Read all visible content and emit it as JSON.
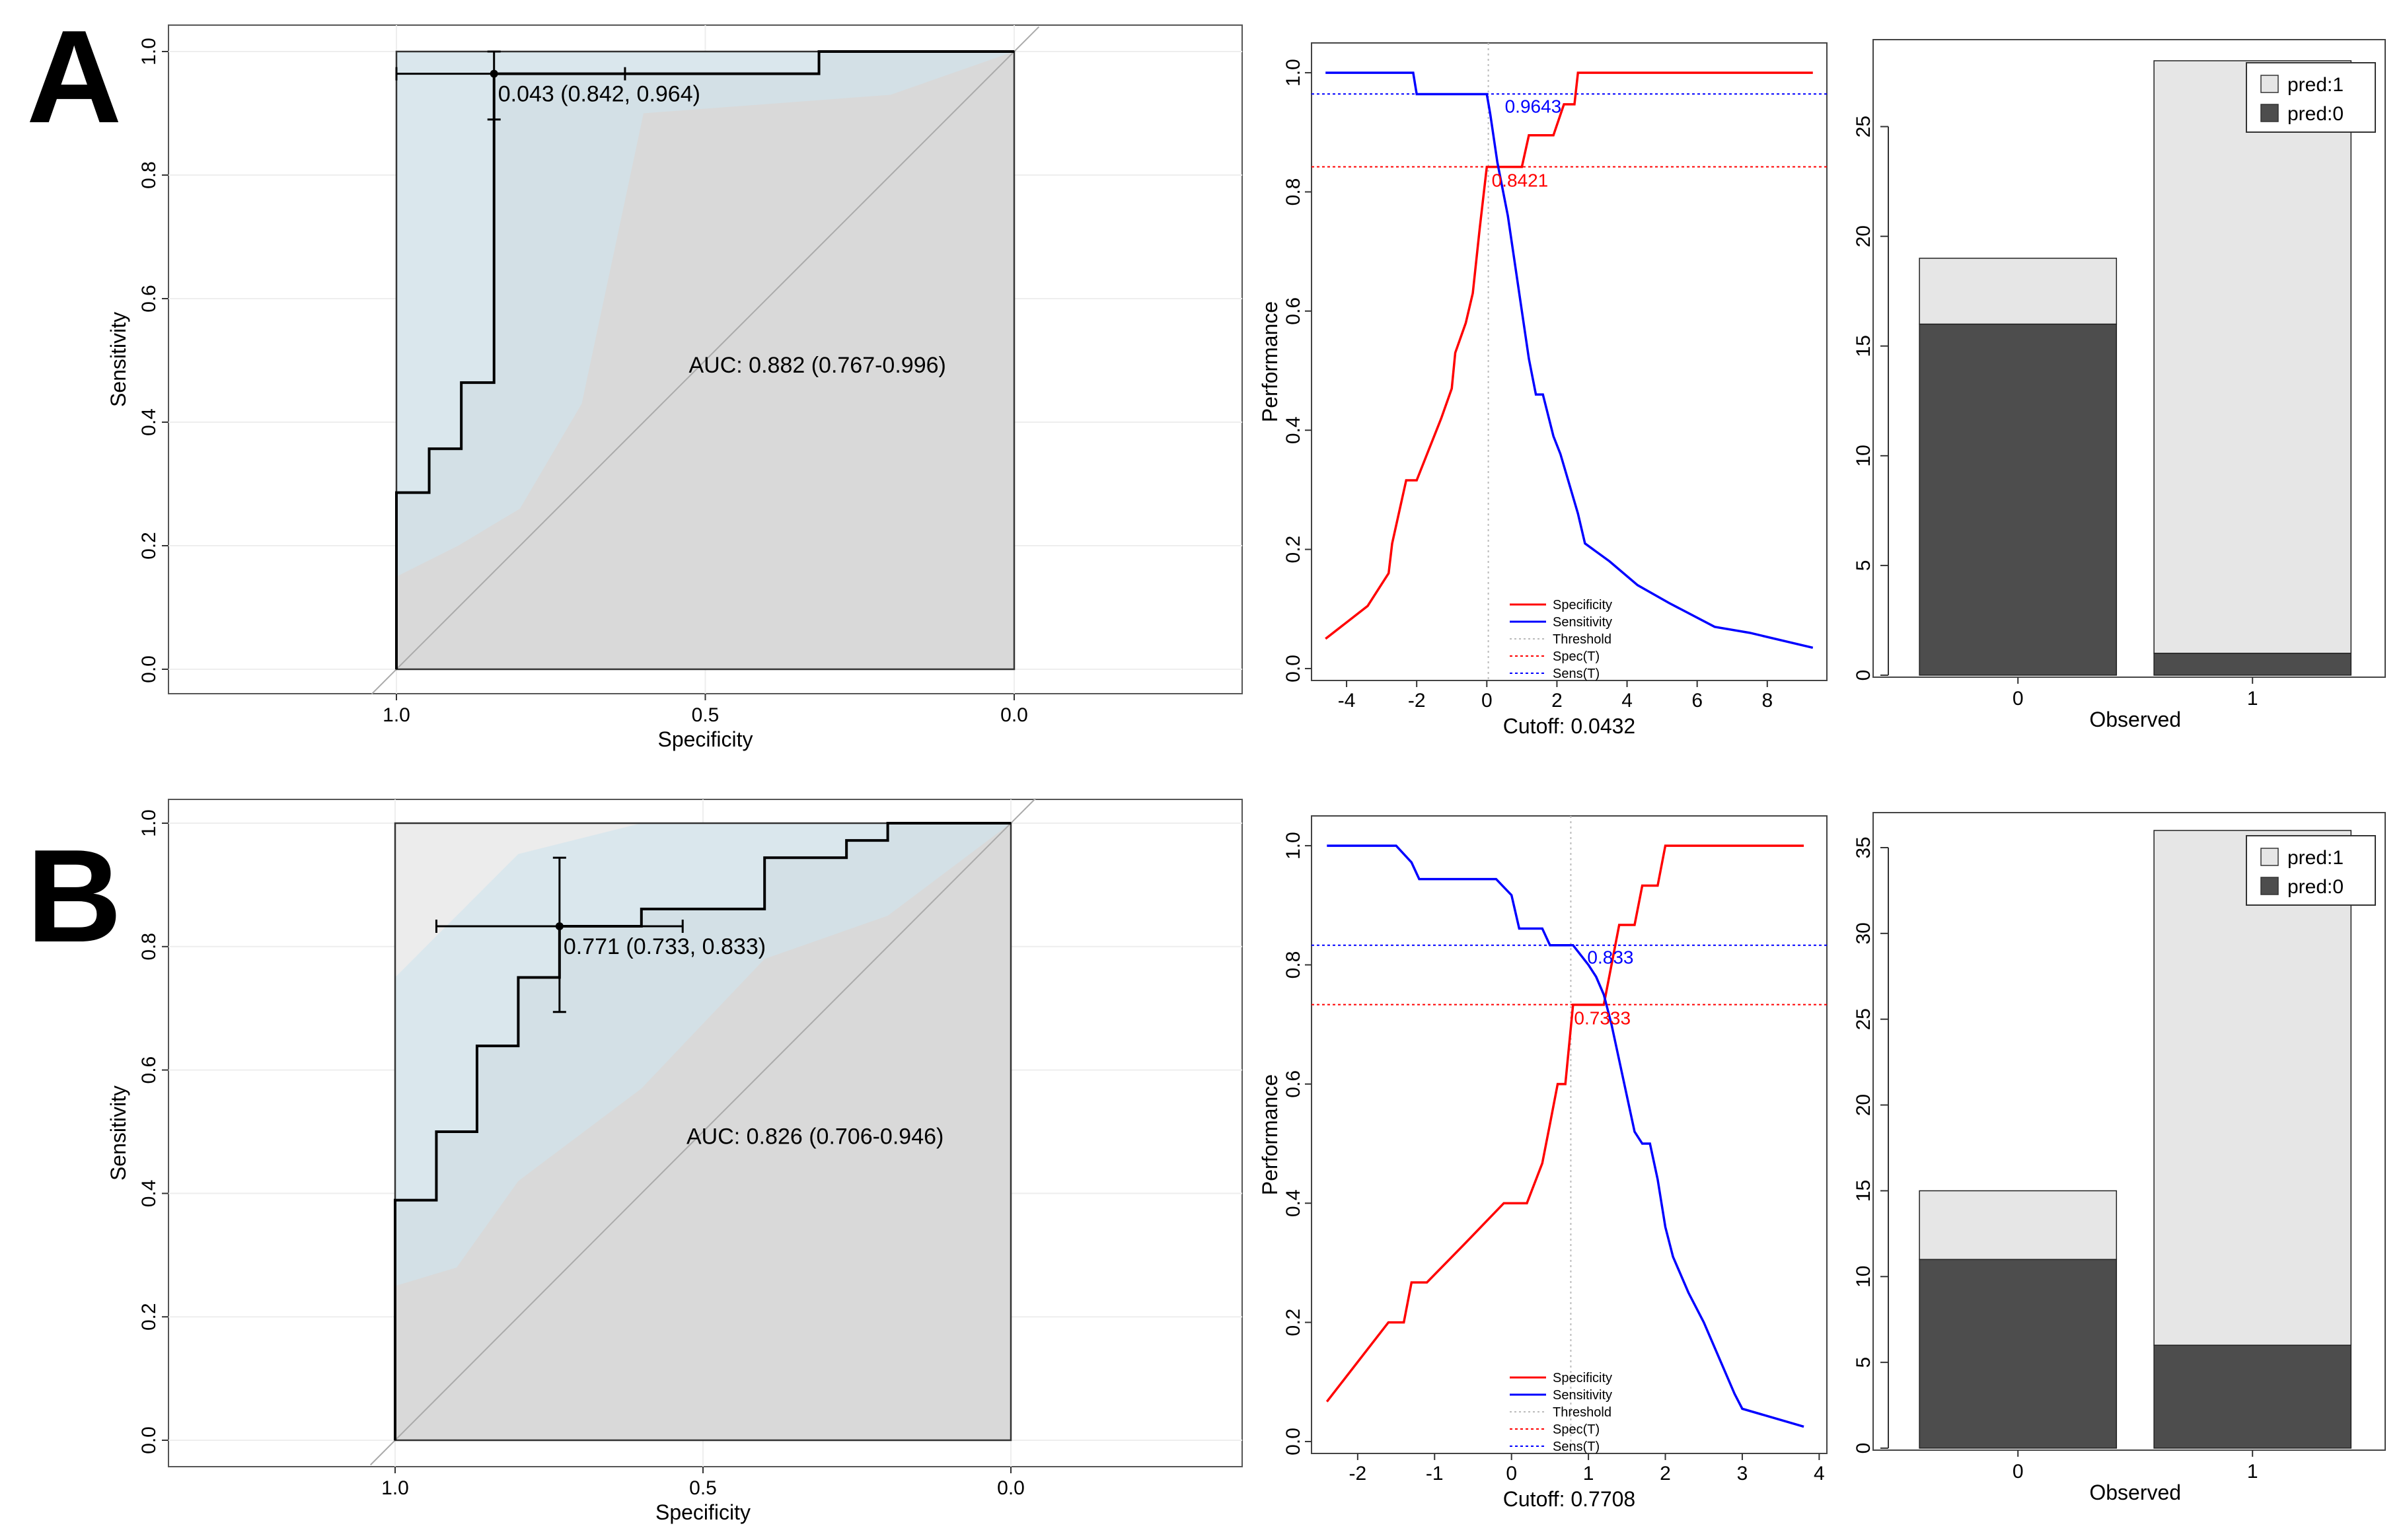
{
  "panels": [
    {
      "label": "A",
      "roc": {
        "type": "line",
        "xlabel": "Specificity",
        "ylabel": "Sensitivity",
        "xlim": [
          1.0,
          0.0
        ],
        "ylim": [
          0.0,
          1.0
        ],
        "xticks": [
          "1.0",
          "0.5",
          "0.0"
        ],
        "xtick_values": [
          1.0,
          0.5,
          0.0
        ],
        "yticks": [
          "0.0",
          "0.2",
          "0.4",
          "0.6",
          "0.8",
          "1.0"
        ],
        "ytick_values": [
          0.0,
          0.2,
          0.4,
          0.6,
          0.8,
          1.0
        ],
        "auc_text": "AUC: 0.882 (0.767-0.996)",
        "threshold_text": "0.043 (0.842, 0.964)",
        "threshold_point": {
          "spec": 0.842,
          "sens": 0.964
        },
        "ci_spec": [
          0.63,
          1.0
        ],
        "ci_sens": [
          0.89,
          1.0
        ],
        "curve": [
          [
            1.0,
            0.0
          ],
          [
            1.0,
            0.286
          ],
          [
            0.947,
            0.286
          ],
          [
            0.947,
            0.357
          ],
          [
            0.895,
            0.357
          ],
          [
            0.895,
            0.464
          ],
          [
            0.842,
            0.464
          ],
          [
            0.842,
            0.964
          ],
          [
            0.316,
            0.964
          ],
          [
            0.316,
            1.0
          ],
          [
            0.0,
            1.0
          ]
        ],
        "ci_band_upper": [
          [
            1.0,
            0.96
          ],
          [
            1.0,
            1.0
          ],
          [
            0.0,
            1.0
          ]
        ],
        "ci_band_lower": [
          [
            1.0,
            0.15
          ],
          [
            0.9,
            0.2
          ],
          [
            0.8,
            0.26
          ],
          [
            0.7,
            0.43
          ],
          [
            0.6,
            0.9
          ],
          [
            0.2,
            0.93
          ],
          [
            0.0,
            1.0
          ]
        ]
      },
      "perf": {
        "type": "line",
        "xlabel": "Cutoff: 0.0432",
        "ylabel": "Performance",
        "xlim": [
          -5,
          9.7
        ],
        "ylim": [
          -0.02,
          1.05
        ],
        "xticks": [
          "-4",
          "-2",
          "0",
          "2",
          "4",
          "6",
          "8"
        ],
        "xtick_values": [
          -4,
          -2,
          0,
          2,
          4,
          6,
          8
        ],
        "yticks": [
          "0.0",
          "0.2",
          "0.4",
          "0.6",
          "0.8",
          "1.0"
        ],
        "ytick_values": [
          0.0,
          0.2,
          0.4,
          0.6,
          0.8,
          1.0
        ],
        "cutoff": 0.0432,
        "spec_t": 0.8421,
        "sens_t": 0.9643,
        "spec_label": "0.8421",
        "sens_label": "0.9643",
        "colors": {
          "specificity": "#ff0000",
          "sensitivity": "#0000ff",
          "threshold": "#bbbbbb"
        },
        "legend": [
          "Specificity",
          "Sensitivity",
          "Threshold",
          "Spec(T)",
          "Sens(T)"
        ],
        "series": [
          {
            "name": "Specificity",
            "points": [
              [
                -4.6,
                0.05
              ],
              [
                -3.4,
                0.105
              ],
              [
                -2.8,
                0.16
              ],
              [
                -2.7,
                0.21
              ],
              [
                -2.3,
                0.316
              ],
              [
                -2.0,
                0.316
              ],
              [
                -1.3,
                0.42
              ],
              [
                -1.0,
                0.47
              ],
              [
                -0.9,
                0.53
              ],
              [
                -0.6,
                0.58
              ],
              [
                -0.4,
                0.63
              ],
              [
                -0.2,
                0.74
              ],
              [
                0.0,
                0.842
              ],
              [
                0.5,
                0.842
              ],
              [
                1.0,
                0.842
              ],
              [
                1.2,
                0.895
              ],
              [
                1.9,
                0.895
              ],
              [
                2.2,
                0.947
              ],
              [
                2.5,
                0.947
              ],
              [
                2.6,
                1.0
              ],
              [
                9.3,
                1.0
              ]
            ]
          },
          {
            "name": "Sensitivity",
            "points": [
              [
                -4.6,
                1.0
              ],
              [
                -2.1,
                1.0
              ],
              [
                -2.0,
                0.964
              ],
              [
                -0.5,
                0.964
              ],
              [
                0.0,
                0.964
              ],
              [
                0.1,
                0.93
              ],
              [
                0.3,
                0.85
              ],
              [
                0.6,
                0.76
              ],
              [
                0.8,
                0.68
              ],
              [
                1.0,
                0.6
              ],
              [
                1.2,
                0.52
              ],
              [
                1.4,
                0.46
              ],
              [
                1.6,
                0.46
              ],
              [
                1.9,
                0.39
              ],
              [
                2.1,
                0.36
              ],
              [
                2.3,
                0.32
              ],
              [
                2.4,
                0.3
              ],
              [
                2.6,
                0.26
              ],
              [
                2.8,
                0.21
              ],
              [
                3.5,
                0.18
              ],
              [
                4.3,
                0.14
              ],
              [
                5.2,
                0.11
              ],
              [
                6.5,
                0.07
              ],
              [
                7.5,
                0.06
              ],
              [
                9.3,
                0.035
              ]
            ]
          }
        ]
      },
      "bar": {
        "type": "bar",
        "xlabel": "Observed",
        "categories": [
          "0",
          "1"
        ],
        "ylim": [
          0,
          25.5
        ],
        "yticks": [
          "0",
          "5",
          "10",
          "15",
          "20",
          "25"
        ],
        "ytick_values": [
          0,
          5,
          10,
          15,
          20,
          25
        ],
        "series": [
          {
            "name": "pred:0",
            "values": [
              16,
              1
            ],
            "color": "#4d4d4d"
          },
          {
            "name": "pred:1",
            "values": [
              3,
              27
            ],
            "color": "#e6e6e6"
          }
        ],
        "legend": [
          "pred:1",
          "pred:0"
        ]
      }
    },
    {
      "label": "B",
      "roc": {
        "type": "line",
        "xlabel": "Specificity",
        "ylabel": "Sensitivity",
        "xlim": [
          1.0,
          0.0
        ],
        "ylim": [
          0.0,
          1.0
        ],
        "xticks": [
          "1.0",
          "0.5",
          "0.0"
        ],
        "xtick_values": [
          1.0,
          0.5,
          0.0
        ],
        "yticks": [
          "0.0",
          "0.2",
          "0.4",
          "0.6",
          "0.8",
          "1.0"
        ],
        "ytick_values": [
          0.0,
          0.2,
          0.4,
          0.6,
          0.8,
          1.0
        ],
        "auc_text": "AUC: 0.826 (0.706-0.946)",
        "threshold_text": "0.771 (0.733, 0.833)",
        "threshold_point": {
          "spec": 0.733,
          "sens": 0.833
        },
        "ci_spec": [
          0.533,
          0.933
        ],
        "ci_sens": [
          0.694,
          0.944
        ],
        "curve": [
          [
            1.0,
            0.0
          ],
          [
            1.0,
            0.389
          ],
          [
            0.933,
            0.389
          ],
          [
            0.933,
            0.5
          ],
          [
            0.867,
            0.5
          ],
          [
            0.867,
            0.639
          ],
          [
            0.8,
            0.639
          ],
          [
            0.8,
            0.75
          ],
          [
            0.733,
            0.75
          ],
          [
            0.733,
            0.833
          ],
          [
            0.6,
            0.833
          ],
          [
            0.6,
            0.861
          ],
          [
            0.4,
            0.861
          ],
          [
            0.4,
            0.944
          ],
          [
            0.267,
            0.944
          ],
          [
            0.267,
            0.972
          ],
          [
            0.2,
            0.972
          ],
          [
            0.2,
            1.0
          ],
          [
            0.0,
            1.0
          ]
        ],
        "ci_band_upper": [
          [
            1.0,
            0.75
          ],
          [
            0.8,
            0.95
          ],
          [
            0.6,
            1.0
          ],
          [
            0.0,
            1.0
          ]
        ],
        "ci_band_lower": [
          [
            1.0,
            0.25
          ],
          [
            0.9,
            0.28
          ],
          [
            0.8,
            0.42
          ],
          [
            0.6,
            0.57
          ],
          [
            0.4,
            0.78
          ],
          [
            0.2,
            0.85
          ],
          [
            0.0,
            1.0
          ]
        ]
      },
      "perf": {
        "type": "line",
        "xlabel": "Cutoff: 0.7708",
        "ylabel": "Performance",
        "xlim": [
          -2.6,
          4.1
        ],
        "ylim": [
          -0.02,
          1.05
        ],
        "xticks": [
          "-2",
          "-1",
          "0",
          "1",
          "2",
          "3",
          "4"
        ],
        "xtick_values": [
          -2,
          -1,
          0,
          1,
          2,
          3,
          4
        ],
        "yticks": [
          "0.0",
          "0.2",
          "0.4",
          "0.6",
          "0.8",
          "1.0"
        ],
        "ytick_values": [
          0.0,
          0.2,
          0.4,
          0.6,
          0.8,
          1.0
        ],
        "cutoff": 0.7708,
        "spec_t": 0.7333,
        "sens_t": 0.833,
        "spec_label": "0.7333",
        "sens_label": "0.833",
        "colors": {
          "specificity": "#ff0000",
          "sensitivity": "#0000ff",
          "threshold": "#bbbbbb"
        },
        "legend": [
          "Specificity",
          "Sensitivity",
          "Threshold",
          "Spec(T)",
          "Sens(T)"
        ],
        "series": [
          {
            "name": "Specificity",
            "points": [
              [
                -2.4,
                0.067
              ],
              [
                -1.6,
                0.2
              ],
              [
                -1.4,
                0.2
              ],
              [
                -1.3,
                0.267
              ],
              [
                -1.1,
                0.267
              ],
              [
                -0.6,
                0.333
              ],
              [
                -0.1,
                0.4
              ],
              [
                0.2,
                0.4
              ],
              [
                0.4,
                0.467
              ],
              [
                0.5,
                0.533
              ],
              [
                0.6,
                0.6
              ],
              [
                0.7,
                0.6
              ],
              [
                0.8,
                0.733
              ],
              [
                1.2,
                0.733
              ],
              [
                1.3,
                0.8
              ],
              [
                1.4,
                0.867
              ],
              [
                1.6,
                0.867
              ],
              [
                1.7,
                0.933
              ],
              [
                1.9,
                0.933
              ],
              [
                2.0,
                1.0
              ],
              [
                3.8,
                1.0
              ]
            ]
          },
          {
            "name": "Sensitivity",
            "points": [
              [
                -2.4,
                1.0
              ],
              [
                -1.5,
                1.0
              ],
              [
                -1.3,
                0.972
              ],
              [
                -1.2,
                0.944
              ],
              [
                -0.2,
                0.944
              ],
              [
                0.0,
                0.917
              ],
              [
                0.1,
                0.861
              ],
              [
                0.4,
                0.861
              ],
              [
                0.5,
                0.833
              ],
              [
                0.8,
                0.833
              ],
              [
                1.0,
                0.8
              ],
              [
                1.1,
                0.78
              ],
              [
                1.2,
                0.75
              ],
              [
                1.3,
                0.7
              ],
              [
                1.4,
                0.64
              ],
              [
                1.5,
                0.58
              ],
              [
                1.6,
                0.52
              ],
              [
                1.7,
                0.5
              ],
              [
                1.8,
                0.5
              ],
              [
                1.9,
                0.44
              ],
              [
                2.0,
                0.36
              ],
              [
                2.1,
                0.31
              ],
              [
                2.3,
                0.25
              ],
              [
                2.5,
                0.2
              ],
              [
                2.7,
                0.14
              ],
              [
                2.9,
                0.08
              ],
              [
                3.0,
                0.055
              ],
              [
                3.8,
                0.025
              ]
            ]
          }
        ]
      },
      "bar": {
        "type": "bar",
        "xlabel": "Observed",
        "categories": [
          "0",
          "1"
        ],
        "ylim": [
          0,
          35.5
        ],
        "yticks": [
          "0",
          "5",
          "10",
          "15",
          "20",
          "25",
          "30",
          "35"
        ],
        "ytick_values": [
          0,
          5,
          10,
          15,
          20,
          25,
          30,
          35
        ],
        "series": [
          {
            "name": "pred:0",
            "values": [
              11,
              6
            ],
            "color": "#4d4d4d"
          },
          {
            "name": "pred:1",
            "values": [
              4,
              30
            ],
            "color": "#e6e6e6"
          }
        ],
        "legend": [
          "pred:1",
          "pred:0"
        ]
      }
    }
  ]
}
